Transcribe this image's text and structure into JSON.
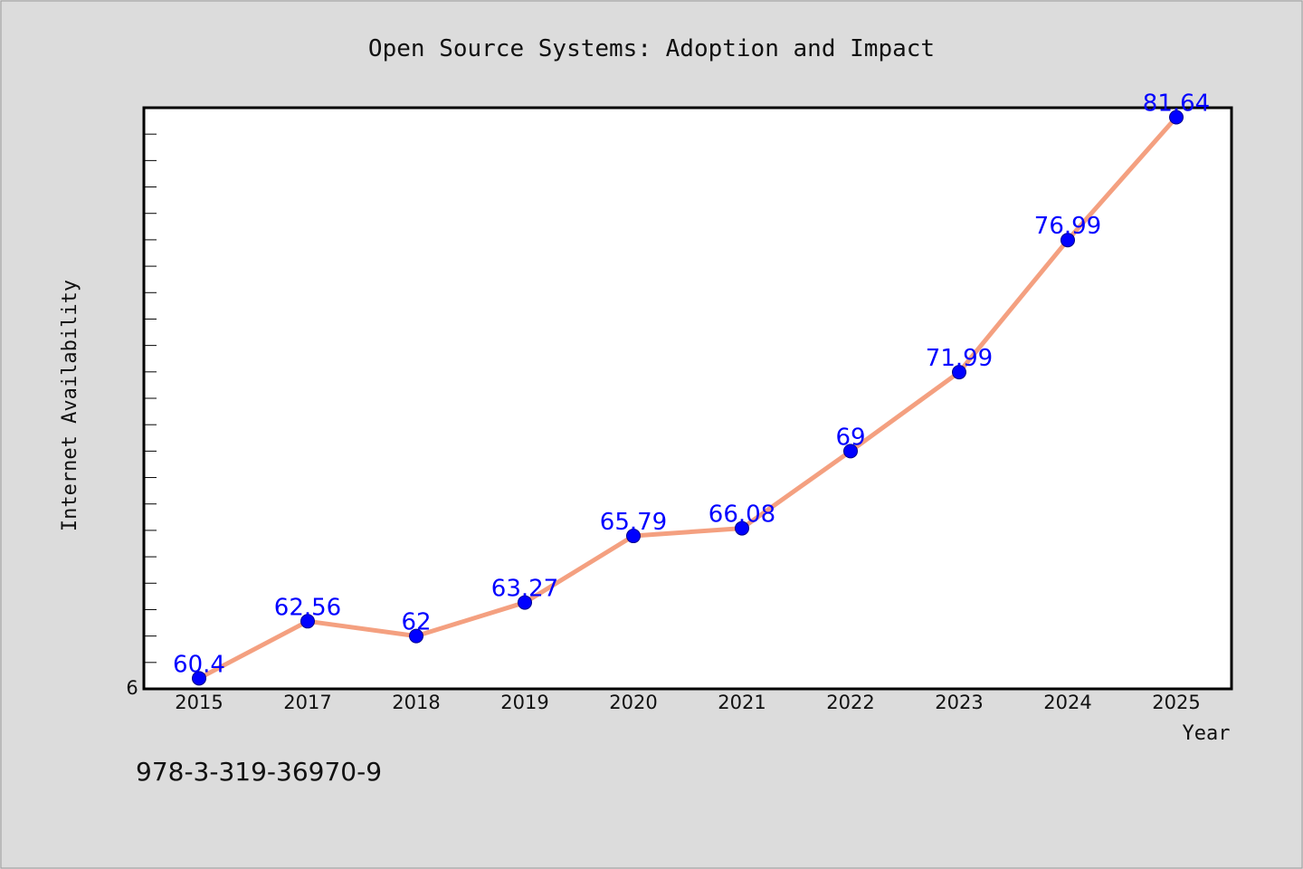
{
  "chart_data": {
    "type": "line",
    "title": "Open Source Systems: Adoption and Impact",
    "xlabel": "Year",
    "ylabel": "Internet Availability",
    "categories": [
      "2015",
      "2017",
      "2018",
      "2019",
      "2020",
      "2021",
      "2022",
      "2023",
      "2024",
      "2025"
    ],
    "series": [
      {
        "values": [
          60.4,
          62.56,
          62,
          63.27,
          65.79,
          66.08,
          69,
          71.99,
          76.99,
          81.64
        ],
        "data_labels": [
          "60.4",
          "62.56",
          "62",
          "63.27",
          "65.79",
          "66.08",
          "69",
          "71.99",
          "76.99",
          "81.64"
        ],
        "line_color": "#f4a080",
        "marker_color": "#0000ff",
        "label_color": "#0000ff"
      }
    ],
    "ylim": [
      60,
      82
    ],
    "y_tick_labels": [
      "6"
    ],
    "grid": false,
    "legend": "none"
  },
  "footer": {
    "isbn": "978-3-319-36970-9"
  },
  "colors": {
    "background": "#dcdcdc",
    "plot_background": "#ffffff",
    "frame": "#000000"
  }
}
